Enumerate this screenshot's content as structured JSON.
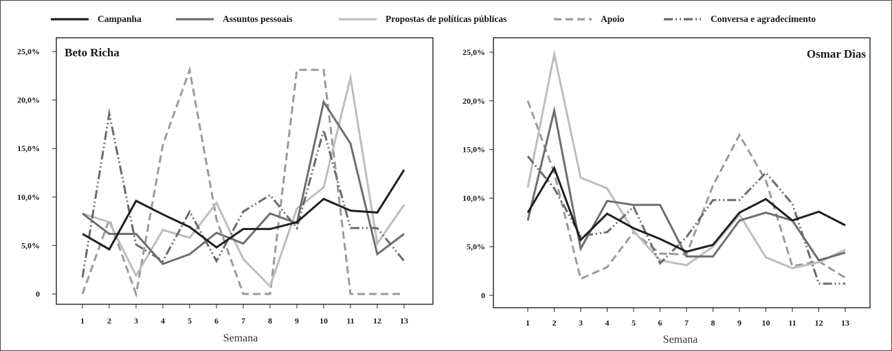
{
  "legend": [
    {
      "name": "Campanha",
      "color": "#1f1f1f",
      "dash": "solid"
    },
    {
      "name": "Assuntos pessoais",
      "color": "#6e6e6e",
      "dash": "solid"
    },
    {
      "name": "Propostas de políticas públicas",
      "color": "#bdbdbd",
      "dash": "solid"
    },
    {
      "name": "Apoio",
      "color": "#9a9a9a",
      "dash": "dash"
    },
    {
      "name": "Conversa e agradecimento",
      "color": "#6a6a6a",
      "dash": "dashdot"
    }
  ],
  "chart_data": [
    {
      "type": "line",
      "title": "Beto Richa",
      "xlabel": "Semana",
      "ylabel": "",
      "ylim": [
        0,
        25
      ],
      "y_ticks": [
        "0",
        "5,0%",
        "10,0%",
        "15,0%",
        "20,0%",
        "25,0%"
      ],
      "x": [
        "1",
        "2",
        "3",
        "4",
        "5",
        "6",
        "7",
        "8",
        "9",
        "10",
        "11",
        "12",
        "13"
      ],
      "series": [
        {
          "name": "Campanha",
          "values": [
            6.2,
            4.6,
            9.6,
            8.2,
            6.9,
            4.8,
            6.7,
            6.7,
            7.4,
            9.8,
            8.6,
            8.4,
            12.8
          ]
        },
        {
          "name": "Assuntos pessoais",
          "values": [
            8.3,
            6.2,
            6.2,
            3.1,
            4.1,
            6.3,
            5.2,
            8.3,
            7.3,
            19.8,
            15.5,
            4.1,
            6.2
          ]
        },
        {
          "name": "Propostas de políticas públicas",
          "values": [
            8.3,
            7.4,
            1.9,
            6.6,
            5.8,
            9.4,
            3.6,
            0.8,
            8.8,
            11.0,
            22.3,
            5.2,
            9.2
          ]
        },
        {
          "name": "Apoio",
          "values": [
            0,
            7.7,
            0,
            15.4,
            23.1,
            7.7,
            0,
            0,
            23.1,
            23.1,
            0,
            0,
            0
          ]
        },
        {
          "name": "Conversa e agradecimento",
          "values": [
            1.7,
            18.6,
            5.1,
            3.4,
            8.5,
            3.4,
            8.5,
            10.2,
            6.8,
            16.9,
            6.8,
            6.8,
            3.4
          ]
        }
      ]
    },
    {
      "type": "line",
      "title": "Osmar Dias",
      "xlabel": "Semana",
      "ylabel": "",
      "ylim": [
        0,
        25
      ],
      "y_ticks": [
        "0",
        "5,0%",
        "10,0%",
        "15,0%",
        "20,0%",
        "25,0%"
      ],
      "x": [
        "1",
        "2",
        "3",
        "4",
        "5",
        "6",
        "7",
        "8",
        "9",
        "10",
        "11",
        "12",
        "13"
      ],
      "series": [
        {
          "name": "Campanha",
          "values": [
            8.5,
            13.1,
            5.7,
            8.4,
            6.9,
            5.8,
            4.5,
            5.2,
            8.5,
            9.9,
            7.7,
            8.6,
            7.2
          ]
        },
        {
          "name": "Assuntos pessoais",
          "values": [
            7.7,
            19.0,
            4.8,
            9.7,
            9.3,
            9.3,
            4.0,
            4.0,
            7.7,
            8.5,
            7.7,
            3.6,
            4.4
          ]
        },
        {
          "name": "Propostas de políticas públicas",
          "values": [
            11.1,
            24.8,
            12.1,
            11.0,
            6.6,
            3.6,
            3.1,
            5.0,
            8.3,
            3.9,
            2.8,
            3.4,
            4.7
          ]
        },
        {
          "name": "Apoio",
          "values": [
            20.0,
            12.6,
            1.7,
            2.9,
            6.5,
            4.3,
            4.2,
            11.3,
            16.5,
            11.8,
            3.0,
            3.5,
            1.8
          ]
        },
        {
          "name": "Conversa e agradecimento",
          "values": [
            14.3,
            11.0,
            6.1,
            6.5,
            9.1,
            3.3,
            6.0,
            9.8,
            9.8,
            12.6,
            9.4,
            1.2,
            1.2
          ]
        }
      ]
    }
  ]
}
